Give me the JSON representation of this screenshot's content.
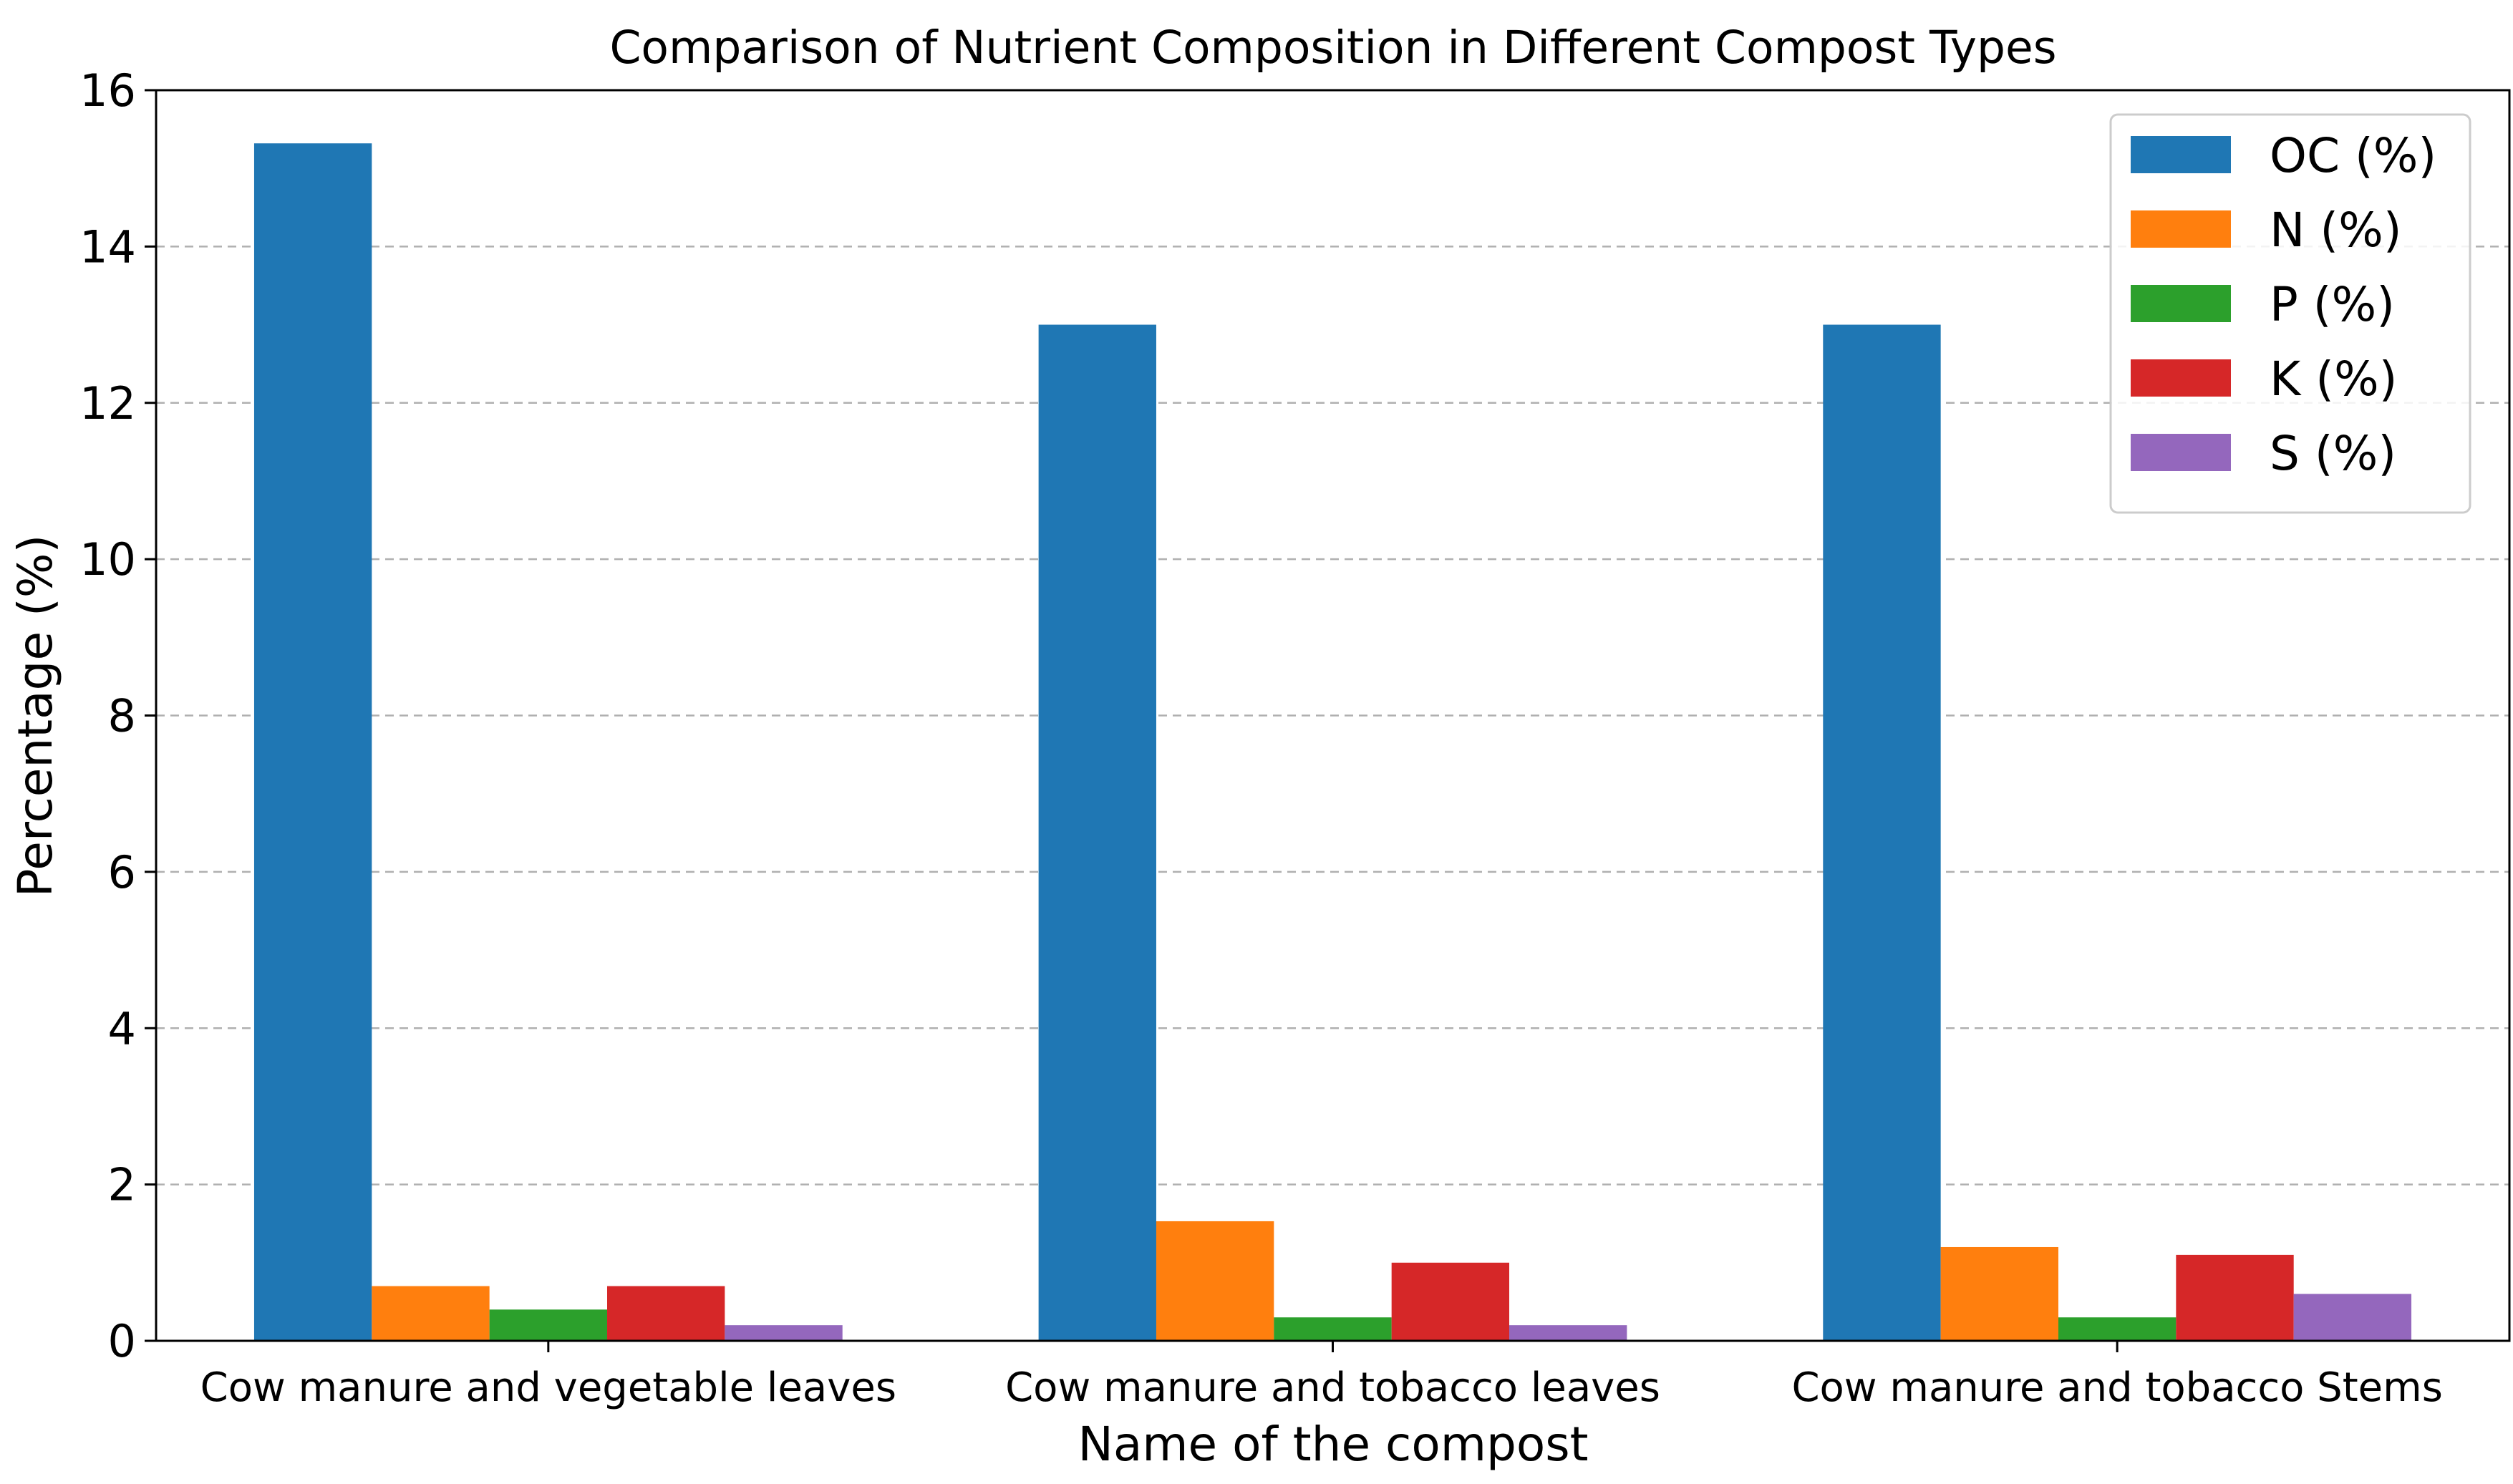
{
  "chart_data": {
    "type": "bar",
    "title": "Comparison of Nutrient Composition in Different Compost Types",
    "xlabel": "Name of the compost",
    "ylabel": "Percentage (%)",
    "ylim": [
      0,
      16
    ],
    "yticks": [
      0,
      2,
      4,
      6,
      8,
      10,
      12,
      14,
      16
    ],
    "grid": "y-dashed",
    "legend_position": "top-right",
    "categories": [
      "Cow manure and vegetable leaves",
      "Cow manure and tobacco leaves",
      "Cow manure and tobacco Stems"
    ],
    "series": [
      {
        "name": "OC (%)",
        "color": "#1f77b4",
        "values": [
          15.32,
          13.0,
          13.0
        ]
      },
      {
        "name": "N (%)",
        "color": "#ff7f0e",
        "values": [
          0.7,
          1.53,
          1.2
        ]
      },
      {
        "name": "P (%)",
        "color": "#2ca02c",
        "values": [
          0.4,
          0.3,
          0.3
        ]
      },
      {
        "name": "K (%)",
        "color": "#d62728",
        "values": [
          0.7,
          1.0,
          1.1
        ]
      },
      {
        "name": "S (%)",
        "color": "#9467bd",
        "values": [
          0.2,
          0.2,
          0.6
        ]
      }
    ]
  }
}
